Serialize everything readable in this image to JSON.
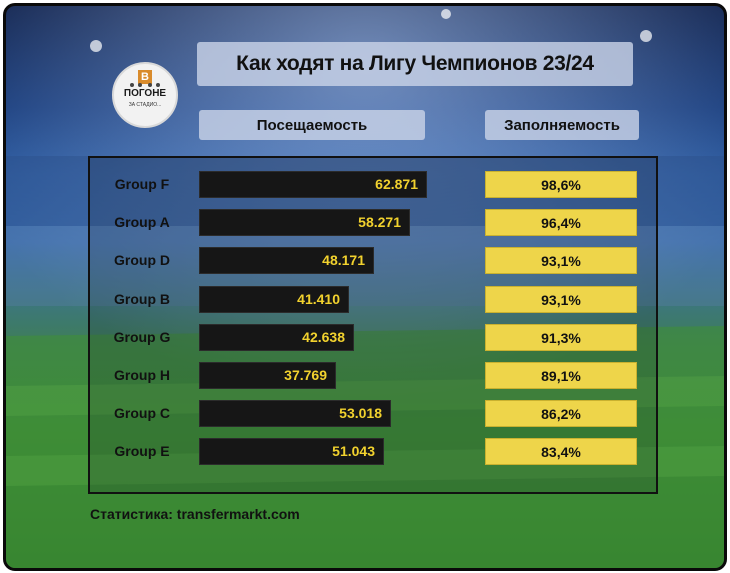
{
  "title": "Как ходят на Лигу Чемпионов 23/24",
  "logo": {
    "letter": "В",
    "word": "ПОГОНЕ",
    "sub": "ЗА СТАДИО..."
  },
  "headers": {
    "attendance": "Посещаемость",
    "fill": "Заполняемость"
  },
  "footer": "Статистика: transfermarkt.com",
  "colors": {
    "bar": "#161616",
    "bar_value": "#f2d22e",
    "fill_box": "#eed54a"
  },
  "chart_data": {
    "type": "bar",
    "title": "Как ходят на Лигу Чемпионов 23/24",
    "categories": [
      "Group F",
      "Group A",
      "Group D",
      "Group B",
      "Group G",
      "Group H",
      "Group C",
      "Group E"
    ],
    "series": [
      {
        "name": "Посещаемость",
        "values": [
          62871,
          58271,
          48171,
          41410,
          42638,
          37769,
          53018,
          51043
        ],
        "labels": [
          "62.871",
          "58.271",
          "48.171",
          "41.410",
          "42.638",
          "37.769",
          "53.018",
          "51.043"
        ]
      },
      {
        "name": "Заполняемость",
        "values": [
          98.6,
          96.4,
          93.1,
          93.1,
          91.3,
          89.1,
          86.2,
          83.4
        ],
        "labels": [
          "98,6%",
          "96,4%",
          "93,1%",
          "93,1%",
          "91,3%",
          "89,1%",
          "86,2%",
          "83,4%"
        ]
      }
    ],
    "xlabel": "",
    "ylabel": ""
  }
}
